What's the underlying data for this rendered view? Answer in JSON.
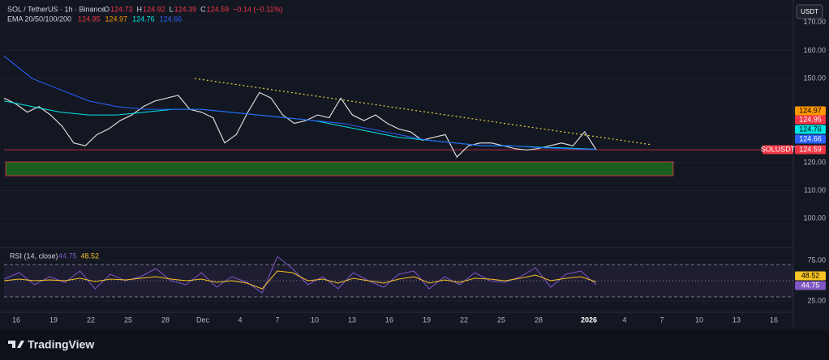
{
  "ui": {
    "symbol": "SOL / TetherUS · 1h · Binance",
    "ohlc": [
      {
        "label": "O",
        "value": 124.73
      },
      {
        "label": "H",
        "value": 124.92
      },
      {
        "label": "L",
        "value": 124.39
      },
      {
        "label": "C",
        "value": 124.59
      }
    ],
    "change": "−0.14 (−0.11%)",
    "currency": "USDT",
    "brand": "TradingView",
    "symbol_tag": "SOLUSDT",
    "x_labels": [
      "16",
      "19",
      "22",
      "25",
      "28",
      "Dec",
      "4",
      "7",
      "10",
      "13",
      "16",
      "19",
      "22",
      "25",
      "28",
      "2026",
      "4",
      "7",
      "10",
      "13",
      "16"
    ]
  },
  "chart_data": [
    {
      "type": "line",
      "indicator": "EMA 20/50/100/200",
      "ylim": [
        90,
        178
      ],
      "yticks": [
        {
          "value": 100,
          "label": "100.00"
        },
        {
          "value": 110,
          "label": "110.00"
        },
        {
          "value": 120,
          "label": "120.00"
        },
        {
          "value": 150,
          "label": "150.00"
        },
        {
          "value": 160,
          "label": "160.00"
        },
        {
          "value": 170,
          "label": "170.00"
        }
      ],
      "series": [
        {
          "name": "Price",
          "color": "#d8d8d8",
          "values": [
            143,
            141,
            138,
            140,
            137,
            133,
            127,
            126,
            130,
            132,
            135,
            137,
            140,
            142,
            143,
            144,
            139,
            138,
            136,
            127,
            130,
            138,
            145,
            143,
            137,
            134,
            135,
            137,
            136,
            143,
            137,
            135,
            137,
            134,
            132,
            131,
            128,
            129,
            130,
            122,
            126,
            127,
            127,
            126,
            125,
            124.5,
            125,
            126,
            127,
            126,
            131,
            124.59
          ]
        },
        {
          "name": "EMA 20",
          "color": "#f23645",
          "values": [
            124.95
          ]
        },
        {
          "name": "EMA 50",
          "color": "#ff9800",
          "values": [
            124.97
          ]
        },
        {
          "name": "EMA 100",
          "color": "#00e5e5",
          "values": [
            142,
            140,
            138,
            137,
            137,
            138,
            139,
            139,
            138,
            137,
            136,
            135,
            133,
            131,
            129,
            128,
            127,
            126,
            126,
            125.5,
            125.2,
            124.76
          ]
        },
        {
          "name": "EMA 200",
          "color": "#2962ff",
          "values": [
            158,
            150,
            146,
            142,
            140,
            139,
            139,
            139,
            138,
            137,
            136,
            135,
            134,
            132,
            130,
            128,
            127,
            126,
            126,
            125.3,
            125,
            124.66
          ]
        }
      ],
      "trendline": {
        "color": "#e6d33a",
        "values": [
          150,
          126.4
        ]
      },
      "zone": {
        "color": "#1b5e20",
        "values": [
          115.3,
          120.3
        ]
      },
      "last_price": 124.59
    },
    {
      "type": "line",
      "indicator": "RSI (14, close)",
      "ylim": [
        9,
        89
      ],
      "yticks": [
        {
          "value": 75,
          "label": "75.00"
        },
        {
          "value": 25,
          "label": "25.00"
        }
      ],
      "bands": [
        70,
        50,
        30
      ],
      "series": [
        {
          "name": "RSI",
          "color": "#7e57c2",
          "values": [
            52,
            60,
            45,
            55,
            48,
            62,
            40,
            58,
            50,
            55,
            65,
            50,
            45,
            60,
            42,
            55,
            48,
            35,
            80,
            65,
            45,
            55,
            40,
            60,
            50,
            42,
            58,
            62,
            40,
            55,
            45,
            60,
            50,
            48,
            55,
            66,
            42,
            58,
            62,
            44.75
          ]
        },
        {
          "name": "RSI-based MA",
          "color": "#f7c325",
          "values": [
            50,
            52,
            50,
            51,
            50,
            53,
            49,
            52,
            51,
            53,
            55,
            52,
            50,
            52,
            48,
            50,
            47,
            40,
            62,
            60,
            50,
            52,
            47,
            53,
            50,
            47,
            52,
            55,
            47,
            51,
            48,
            53,
            52,
            50,
            53,
            57,
            50,
            53,
            55,
            48.52
          ]
        }
      ]
    }
  ]
}
